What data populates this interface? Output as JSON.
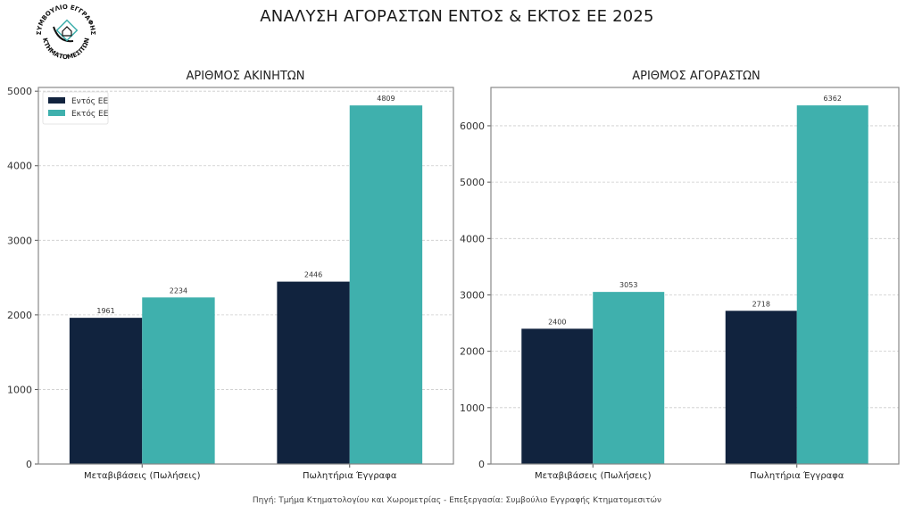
{
  "title": "ΑΝΑΛΥΣΗ ΑΓΟΡΑΣΤΩΝ ΕΝΤΟΣ & ΕΚΤΟΣ ΕΕ 2025",
  "logo": {
    "text_top": "ΣΥΜΒΟΥΛΙΟ ΕΓΓΡΑΦΗΣ",
    "text_bottom": "ΚΤΗΜΑΤΟΜΕΣΙΤΩΝ",
    "icon": "house-icon"
  },
  "source": "Πηγή: Τμήμα Κτηματολογίου και Χωρομετρίας - Επεξεργασία: Συμβούλιο Εγγραφής Κτηματομεσιτών",
  "colors": {
    "inside_eu": "#11233e",
    "outside_eu": "#3fb0ad",
    "grid": "#cccccc",
    "frame": "#888888"
  },
  "chart_data": [
    {
      "type": "bar",
      "title": "ΑΡΙΘΜΟΣ ΑΚΙΝΗΤΩΝ",
      "xlabel": "",
      "ylabel": "",
      "categories": [
        "Μεταβιβάσεις (Πωλήσεις)",
        "Πωλητήρια Έγγραφα"
      ],
      "series": [
        {
          "name": "Εντός ΕΕ",
          "values": [
            1961,
            2446
          ]
        },
        {
          "name": "Εκτός ΕΕ",
          "values": [
            2234,
            4809
          ]
        }
      ],
      "ylim": [
        0,
        5050
      ],
      "yticks": [
        0,
        1000,
        2000,
        3000,
        4000,
        5000
      ],
      "grid": true,
      "legend": "top-left"
    },
    {
      "type": "bar",
      "title": "ΑΡΙΘΜΟΣ ΑΓΟΡΑΣΤΩΝ",
      "xlabel": "",
      "ylabel": "",
      "categories": [
        "Μεταβιβάσεις (Πωλήσεις)",
        "Πωλητήρια Έγγραφα"
      ],
      "series": [
        {
          "name": "Εντός ΕΕ",
          "values": [
            2400,
            2718
          ]
        },
        {
          "name": "Εκτός ΕΕ",
          "values": [
            3053,
            6362
          ]
        }
      ],
      "ylim": [
        0,
        6680
      ],
      "yticks": [
        0,
        1000,
        2000,
        3000,
        4000,
        5000,
        6000
      ],
      "grid": true,
      "legend": "none"
    }
  ]
}
